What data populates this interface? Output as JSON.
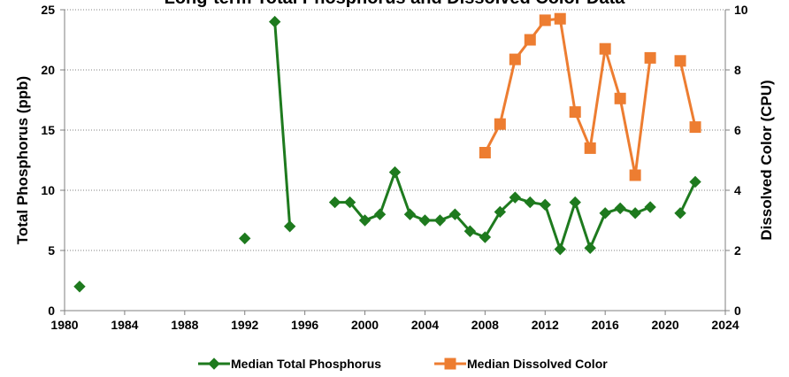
{
  "chart_data": {
    "type": "line",
    "title": "Long-term Total Phosphorus and Dissolved Color Data",
    "ylabel_left": "Total Phosphorus (ppb)",
    "ylabel_right": "Dissolved Color (CPU)",
    "xlabel": "",
    "xlim": [
      1980,
      2024
    ],
    "xticks": [
      1980,
      1984,
      1988,
      1992,
      1996,
      2000,
      2004,
      2008,
      2012,
      2016,
      2020,
      2024
    ],
    "ylim_left": [
      0,
      25
    ],
    "yticks_left": [
      0,
      5,
      10,
      15,
      20,
      25
    ],
    "ylim_right": [
      0,
      10
    ],
    "yticks_right": [
      0,
      2,
      4,
      6,
      8,
      10
    ],
    "grid": "horizontal dotted",
    "legend_position": "bottom",
    "colors": {
      "phosphorus": "#1e7a1e",
      "color": "#ed7d31"
    },
    "series": [
      {
        "name": "Median Total Phosphorus",
        "axis": "left",
        "marker": "diamond",
        "segments": [
          [
            [
              1981,
              2.0
            ]
          ],
          [
            [
              1992,
              6.0
            ]
          ],
          [
            [
              1994,
              24.0
            ],
            [
              1995,
              7.0
            ]
          ],
          [
            [
              1998,
              9.0
            ],
            [
              1999,
              9.0
            ],
            [
              2000,
              7.5
            ],
            [
              2001,
              8.0
            ],
            [
              2002,
              11.5
            ],
            [
              2003,
              8.0
            ],
            [
              2004,
              7.5
            ],
            [
              2005,
              7.5
            ],
            [
              2006,
              8.0
            ],
            [
              2007,
              6.6
            ],
            [
              2008,
              6.1
            ],
            [
              2009,
              8.2
            ],
            [
              2010,
              9.4
            ],
            [
              2011,
              9.0
            ],
            [
              2012,
              8.8
            ],
            [
              2013,
              5.1
            ],
            [
              2014,
              9.0
            ],
            [
              2015,
              5.2
            ],
            [
              2016,
              8.1
            ],
            [
              2017,
              8.5
            ],
            [
              2018,
              8.1
            ],
            [
              2019,
              8.6
            ]
          ],
          [
            [
              2021,
              8.1
            ],
            [
              2022,
              10.7
            ]
          ]
        ]
      },
      {
        "name": "Median Dissolved Color",
        "axis": "right",
        "marker": "square",
        "segments": [
          [
            [
              2008,
              5.25
            ],
            [
              2009,
              6.2
            ],
            [
              2010,
              8.35
            ],
            [
              2011,
              9.0
            ],
            [
              2012,
              9.65
            ],
            [
              2013,
              9.7
            ],
            [
              2014,
              6.6
            ],
            [
              2015,
              5.4
            ],
            [
              2016,
              8.7
            ],
            [
              2017,
              7.05
            ],
            [
              2018,
              4.5
            ],
            [
              2019,
              8.4
            ]
          ],
          [
            [
              2021,
              8.3
            ],
            [
              2022,
              6.1
            ]
          ]
        ]
      }
    ]
  }
}
